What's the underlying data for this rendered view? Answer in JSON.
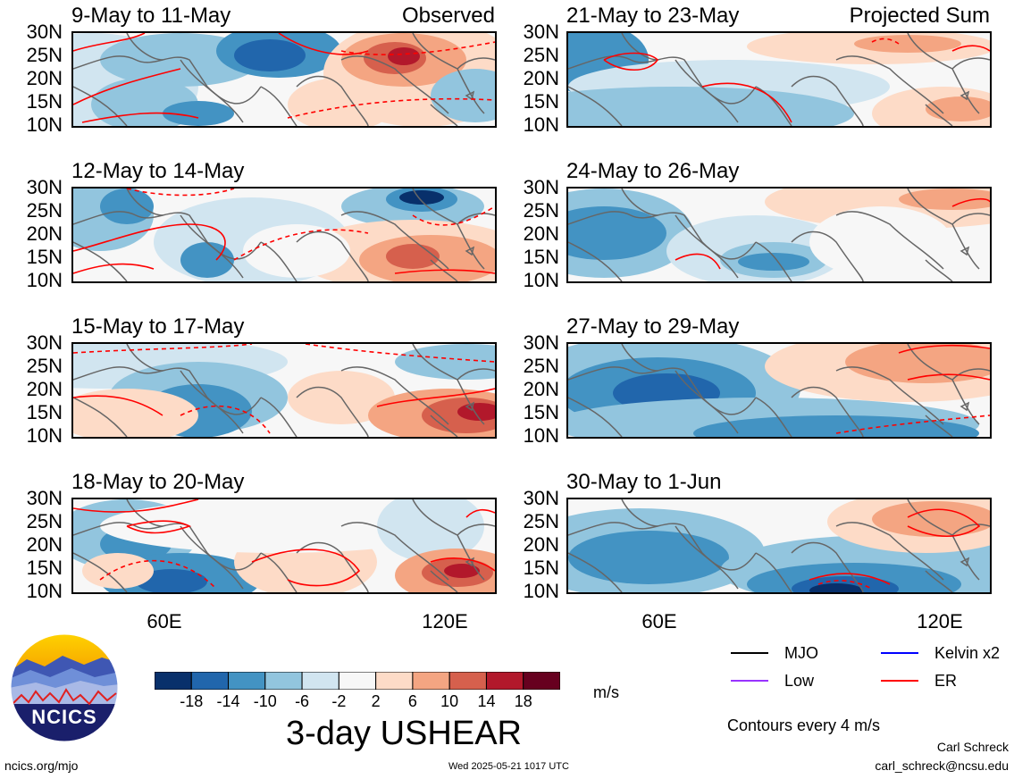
{
  "panels": [
    {
      "title": "9-May to 11-May",
      "tag": "Observed",
      "variant": 0
    },
    {
      "title": "12-May to 14-May",
      "tag": "",
      "variant": 1
    },
    {
      "title": "15-May to 17-May",
      "tag": "",
      "variant": 2
    },
    {
      "title": "18-May to 20-May",
      "tag": "",
      "variant": 3
    },
    {
      "title": "21-May to 23-May",
      "tag": "Projected Sum",
      "variant": 4
    },
    {
      "title": "24-May to 26-May",
      "tag": "",
      "variant": 5
    },
    {
      "title": "27-May to 29-May",
      "tag": "",
      "variant": 6
    },
    {
      "title": "30-May to 1-Jun",
      "tag": "",
      "variant": 7
    }
  ],
  "lat_labels": [
    "30N",
    "25N",
    "20N",
    "15N",
    "10N"
  ],
  "lon_labels": [
    "60E",
    "120E"
  ],
  "colorbar": {
    "colors": [
      "#08306b",
      "#2166ac",
      "#4393c3",
      "#92c5de",
      "#d1e5f0",
      "#f7f7f7",
      "#fddbc7",
      "#f4a582",
      "#d6604d",
      "#b2182b",
      "#67001f"
    ],
    "ticks": [
      "-18",
      "-14",
      "-10",
      "-6",
      "-2",
      "2",
      "6",
      "10",
      "14",
      "18"
    ],
    "units": "m/s"
  },
  "main_title": "3-day USHEAR",
  "legend": {
    "items": [
      {
        "label": "MJO",
        "color": "#000000"
      },
      {
        "label": "Kelvin x2",
        "color": "#0000ff"
      },
      {
        "label": "Low",
        "color": "#9933ff"
      },
      {
        "label": "ER",
        "color": "#ff0000"
      }
    ],
    "contours_note": "Contours every 4 m/s"
  },
  "logo_text": "NCICS",
  "footer": {
    "left": "ncics.org/mjo",
    "center": "Wed 2025-05-21 1017 UTC",
    "author": "Carl Schreck",
    "email": "carl_schreck@ncsu.edu"
  }
}
